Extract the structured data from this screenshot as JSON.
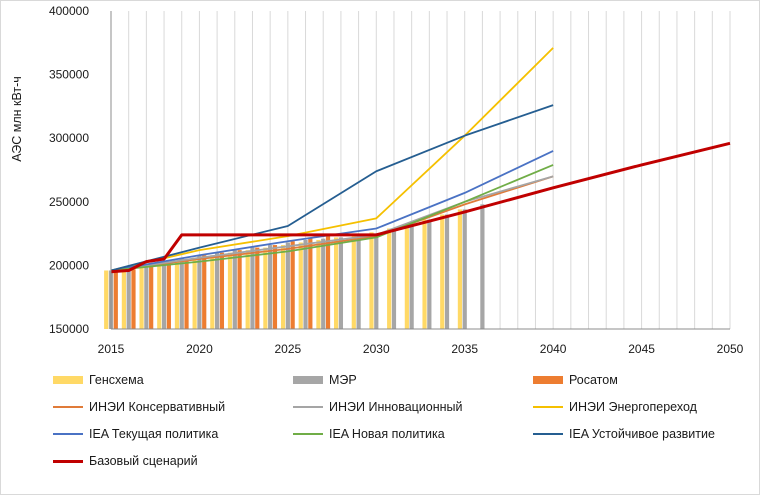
{
  "chart_data": {
    "type": "line+bar",
    "title": "",
    "ylabel": "АЭС млн кВт-ч",
    "xlabel": "",
    "xlim": [
      2015,
      2050
    ],
    "ylim": [
      150000,
      400000
    ],
    "x_ticks": [
      "2015",
      "2020",
      "2025",
      "2030",
      "2035",
      "2040",
      "2045",
      "2050"
    ],
    "y_ticks": [
      "150000",
      "200000",
      "250000",
      "300000",
      "350000",
      "400000"
    ],
    "grid": "vertical",
    "bar_series": [
      {
        "name": "Генсхема",
        "color": "#ffd966",
        "x": [
          2015,
          2016,
          2017,
          2018,
          2019,
          2020,
          2021,
          2022,
          2023,
          2024,
          2025,
          2026,
          2027,
          2028,
          2029,
          2030,
          2031,
          2032,
          2033,
          2034,
          2035
        ],
        "values": [
          196000,
          197000,
          199000,
          201000,
          203000,
          206000,
          208000,
          210000,
          212000,
          214000,
          216000,
          218000,
          220000,
          222000,
          224000,
          226000,
          229000,
          232000,
          236000,
          240000,
          244000
        ]
      },
      {
        "name": "МЭР",
        "color": "#a6a6a6",
        "x": [
          2015,
          2016,
          2017,
          2018,
          2019,
          2020,
          2021,
          2022,
          2023,
          2024,
          2025,
          2026,
          2027,
          2028,
          2029,
          2030,
          2031,
          2032,
          2033,
          2034,
          2035,
          2036
        ],
        "values": [
          196000,
          198000,
          201000,
          203000,
          206000,
          208000,
          210000,
          212000,
          214000,
          216000,
          218000,
          220000,
          221000,
          222000,
          223000,
          224000,
          228000,
          232000,
          236000,
          240000,
          244000,
          248000
        ]
      },
      {
        "name": "Росатом",
        "color": "#ed7d31",
        "x": [
          2015,
          2016,
          2017,
          2018,
          2019,
          2020,
          2021,
          2022,
          2023,
          2024,
          2025,
          2026,
          2027
        ],
        "values": [
          195000,
          197000,
          200000,
          203000,
          205000,
          208000,
          210000,
          212000,
          214000,
          216000,
          219000,
          222000,
          225000
        ]
      }
    ],
    "line_series": [
      {
        "name": "ИНЭИ Консервативный",
        "color": "#e07b39",
        "x": [
          2015,
          2020,
          2025,
          2030,
          2035,
          2040
        ],
        "values": [
          196000,
          205000,
          213000,
          223000,
          248000,
          270000
        ]
      },
      {
        "name": "ИНЭИ Инновационный",
        "color": "#a5a5a5",
        "x": [
          2015,
          2020,
          2025,
          2030,
          2035,
          2040
        ],
        "values": [
          196000,
          206000,
          215000,
          224000,
          250000,
          270000
        ]
      },
      {
        "name": "ИНЭИ Энергопереход",
        "color": "#f5c000",
        "x": [
          2015,
          2020,
          2025,
          2030,
          2035,
          2040
        ],
        "values": [
          196000,
          212000,
          223000,
          237000,
          302000,
          371000
        ]
      },
      {
        "name": "IEA Текущая политика",
        "color": "#4a72c4",
        "x": [
          2015,
          2020,
          2025,
          2030,
          2035,
          2040
        ],
        "values": [
          196000,
          208000,
          219000,
          229000,
          257000,
          290000
        ]
      },
      {
        "name": "IEA Новая политика",
        "color": "#70ad47",
        "x": [
          2015,
          2020,
          2025,
          2030,
          2035,
          2040
        ],
        "values": [
          196000,
          203000,
          211000,
          222000,
          250000,
          279000
        ]
      },
      {
        "name": "IEA Устойчивое развитие",
        "color": "#255e91",
        "x": [
          2015,
          2020,
          2025,
          2030,
          2035,
          2040
        ],
        "values": [
          196000,
          214000,
          231000,
          274000,
          302000,
          326000
        ]
      },
      {
        "name": "Базовый сценарий",
        "color": "#c00000",
        "x": [
          2015,
          2016,
          2017,
          2018,
          2019,
          2020,
          2025,
          2030,
          2035,
          2040,
          2045,
          2050
        ],
        "values": [
          195000,
          196000,
          203000,
          205000,
          224000,
          224000,
          224000,
          224000,
          242000,
          261000,
          279000,
          296000
        ]
      }
    ]
  },
  "legend": [
    {
      "label": "Генсхема",
      "kind": "rect",
      "color": "#ffd966"
    },
    {
      "label": "МЭР",
      "kind": "rect",
      "color": "#a6a6a6"
    },
    {
      "label": "Росатом",
      "kind": "rect",
      "color": "#ed7d31"
    },
    {
      "label": "ИНЭИ Консервативный",
      "kind": "line",
      "color": "#e07b39"
    },
    {
      "label": "ИНЭИ Инновационный",
      "kind": "line",
      "color": "#a5a5a5"
    },
    {
      "label": "ИНЭИ Энергопереход",
      "kind": "line",
      "color": "#f5c000"
    },
    {
      "label": "IEA Текущая политика",
      "kind": "line",
      "color": "#4a72c4"
    },
    {
      "label": "IEA Новая политика",
      "kind": "line",
      "color": "#70ad47"
    },
    {
      "label": "IEA Устойчивое развитие",
      "kind": "line",
      "color": "#255e91"
    },
    {
      "label": "Базовый сценарий",
      "kind": "thick",
      "color": "#c00000"
    }
  ]
}
